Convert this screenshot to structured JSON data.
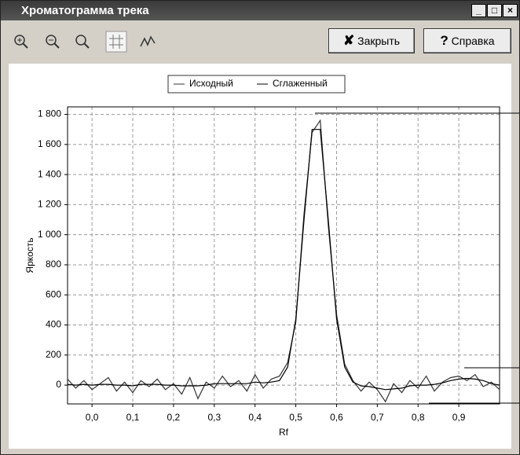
{
  "window": {
    "title": "Хроматограмма трека"
  },
  "buttons": [
    "Закрыть",
    "Справка"
  ],
  "chart_data": {
    "type": "line",
    "x_label": "Rf",
    "y_label": "Яркость",
    "x": [
      -0.06,
      -0.04,
      -0.02,
      0.0,
      0.02,
      0.04,
      0.06,
      0.08,
      0.1,
      0.12,
      0.14,
      0.16,
      0.18,
      0.2,
      0.22,
      0.24,
      0.26,
      0.28,
      0.3,
      0.32,
      0.34,
      0.36,
      0.38,
      0.4,
      0.42,
      0.44,
      0.46,
      0.48,
      0.5,
      0.52,
      0.54,
      0.56,
      0.58,
      0.6,
      0.62,
      0.64,
      0.66,
      0.68,
      0.7,
      0.72,
      0.74,
      0.76,
      0.78,
      0.8,
      0.82,
      0.84,
      0.86,
      0.88,
      0.9,
      0.92,
      0.94,
      0.96,
      0.98,
      1.0
    ],
    "series": [
      {
        "name": "Исходный",
        "color": "#333333",
        "values": [
          40,
          -20,
          30,
          -30,
          10,
          50,
          -40,
          20,
          -50,
          30,
          -10,
          40,
          -30,
          10,
          -60,
          50,
          -90,
          20,
          -20,
          60,
          -10,
          30,
          -40,
          70,
          -20,
          40,
          60,
          150,
          420,
          1130,
          1680,
          1760,
          1050,
          470,
          140,
          30,
          -40,
          20,
          -30,
          -110,
          10,
          -50,
          30,
          -20,
          60,
          -40,
          20,
          50,
          60,
          30,
          70,
          -10,
          20,
          -30
        ]
      },
      {
        "name": "Сглаженный",
        "color": "#000000",
        "values": [
          5,
          0,
          5,
          0,
          5,
          5,
          0,
          0,
          -5,
          5,
          5,
          5,
          0,
          0,
          -5,
          -5,
          -5,
          0,
          10,
          10,
          10,
          10,
          10,
          20,
          15,
          20,
          30,
          120,
          440,
          1090,
          1700,
          1700,
          1090,
          440,
          120,
          20,
          -5,
          -10,
          -20,
          -30,
          -25,
          -20,
          -5,
          0,
          0,
          5,
          15,
          30,
          40,
          45,
          40,
          30,
          10,
          0
        ]
      }
    ],
    "xlim": [
      -0.06,
      1.0
    ],
    "ylim": [
      -125,
      1850
    ],
    "xticks": [
      {
        "value": 0.0,
        "label": "0,0"
      },
      {
        "value": 0.1,
        "label": "0,1"
      },
      {
        "value": 0.2,
        "label": "0,2"
      },
      {
        "value": 0.3,
        "label": "0,3"
      },
      {
        "value": 0.4,
        "label": "0,4"
      },
      {
        "value": 0.5,
        "label": "0,5"
      },
      {
        "value": 0.6,
        "label": "0,6"
      },
      {
        "value": 0.7,
        "label": "0,7"
      },
      {
        "value": 0.8,
        "label": "0,8"
      },
      {
        "value": 0.9,
        "label": "0,9"
      }
    ],
    "yticks": [
      0,
      200,
      400,
      600,
      800,
      {
        "value": 1000,
        "label": "1 000"
      },
      {
        "value": 1200,
        "label": "1 200"
      },
      {
        "value": 1400,
        "label": "1 400"
      },
      {
        "value": 1600,
        "label": "1 600"
      },
      {
        "value": 1800,
        "label": "1 800"
      }
    ],
    "grid": true
  }
}
